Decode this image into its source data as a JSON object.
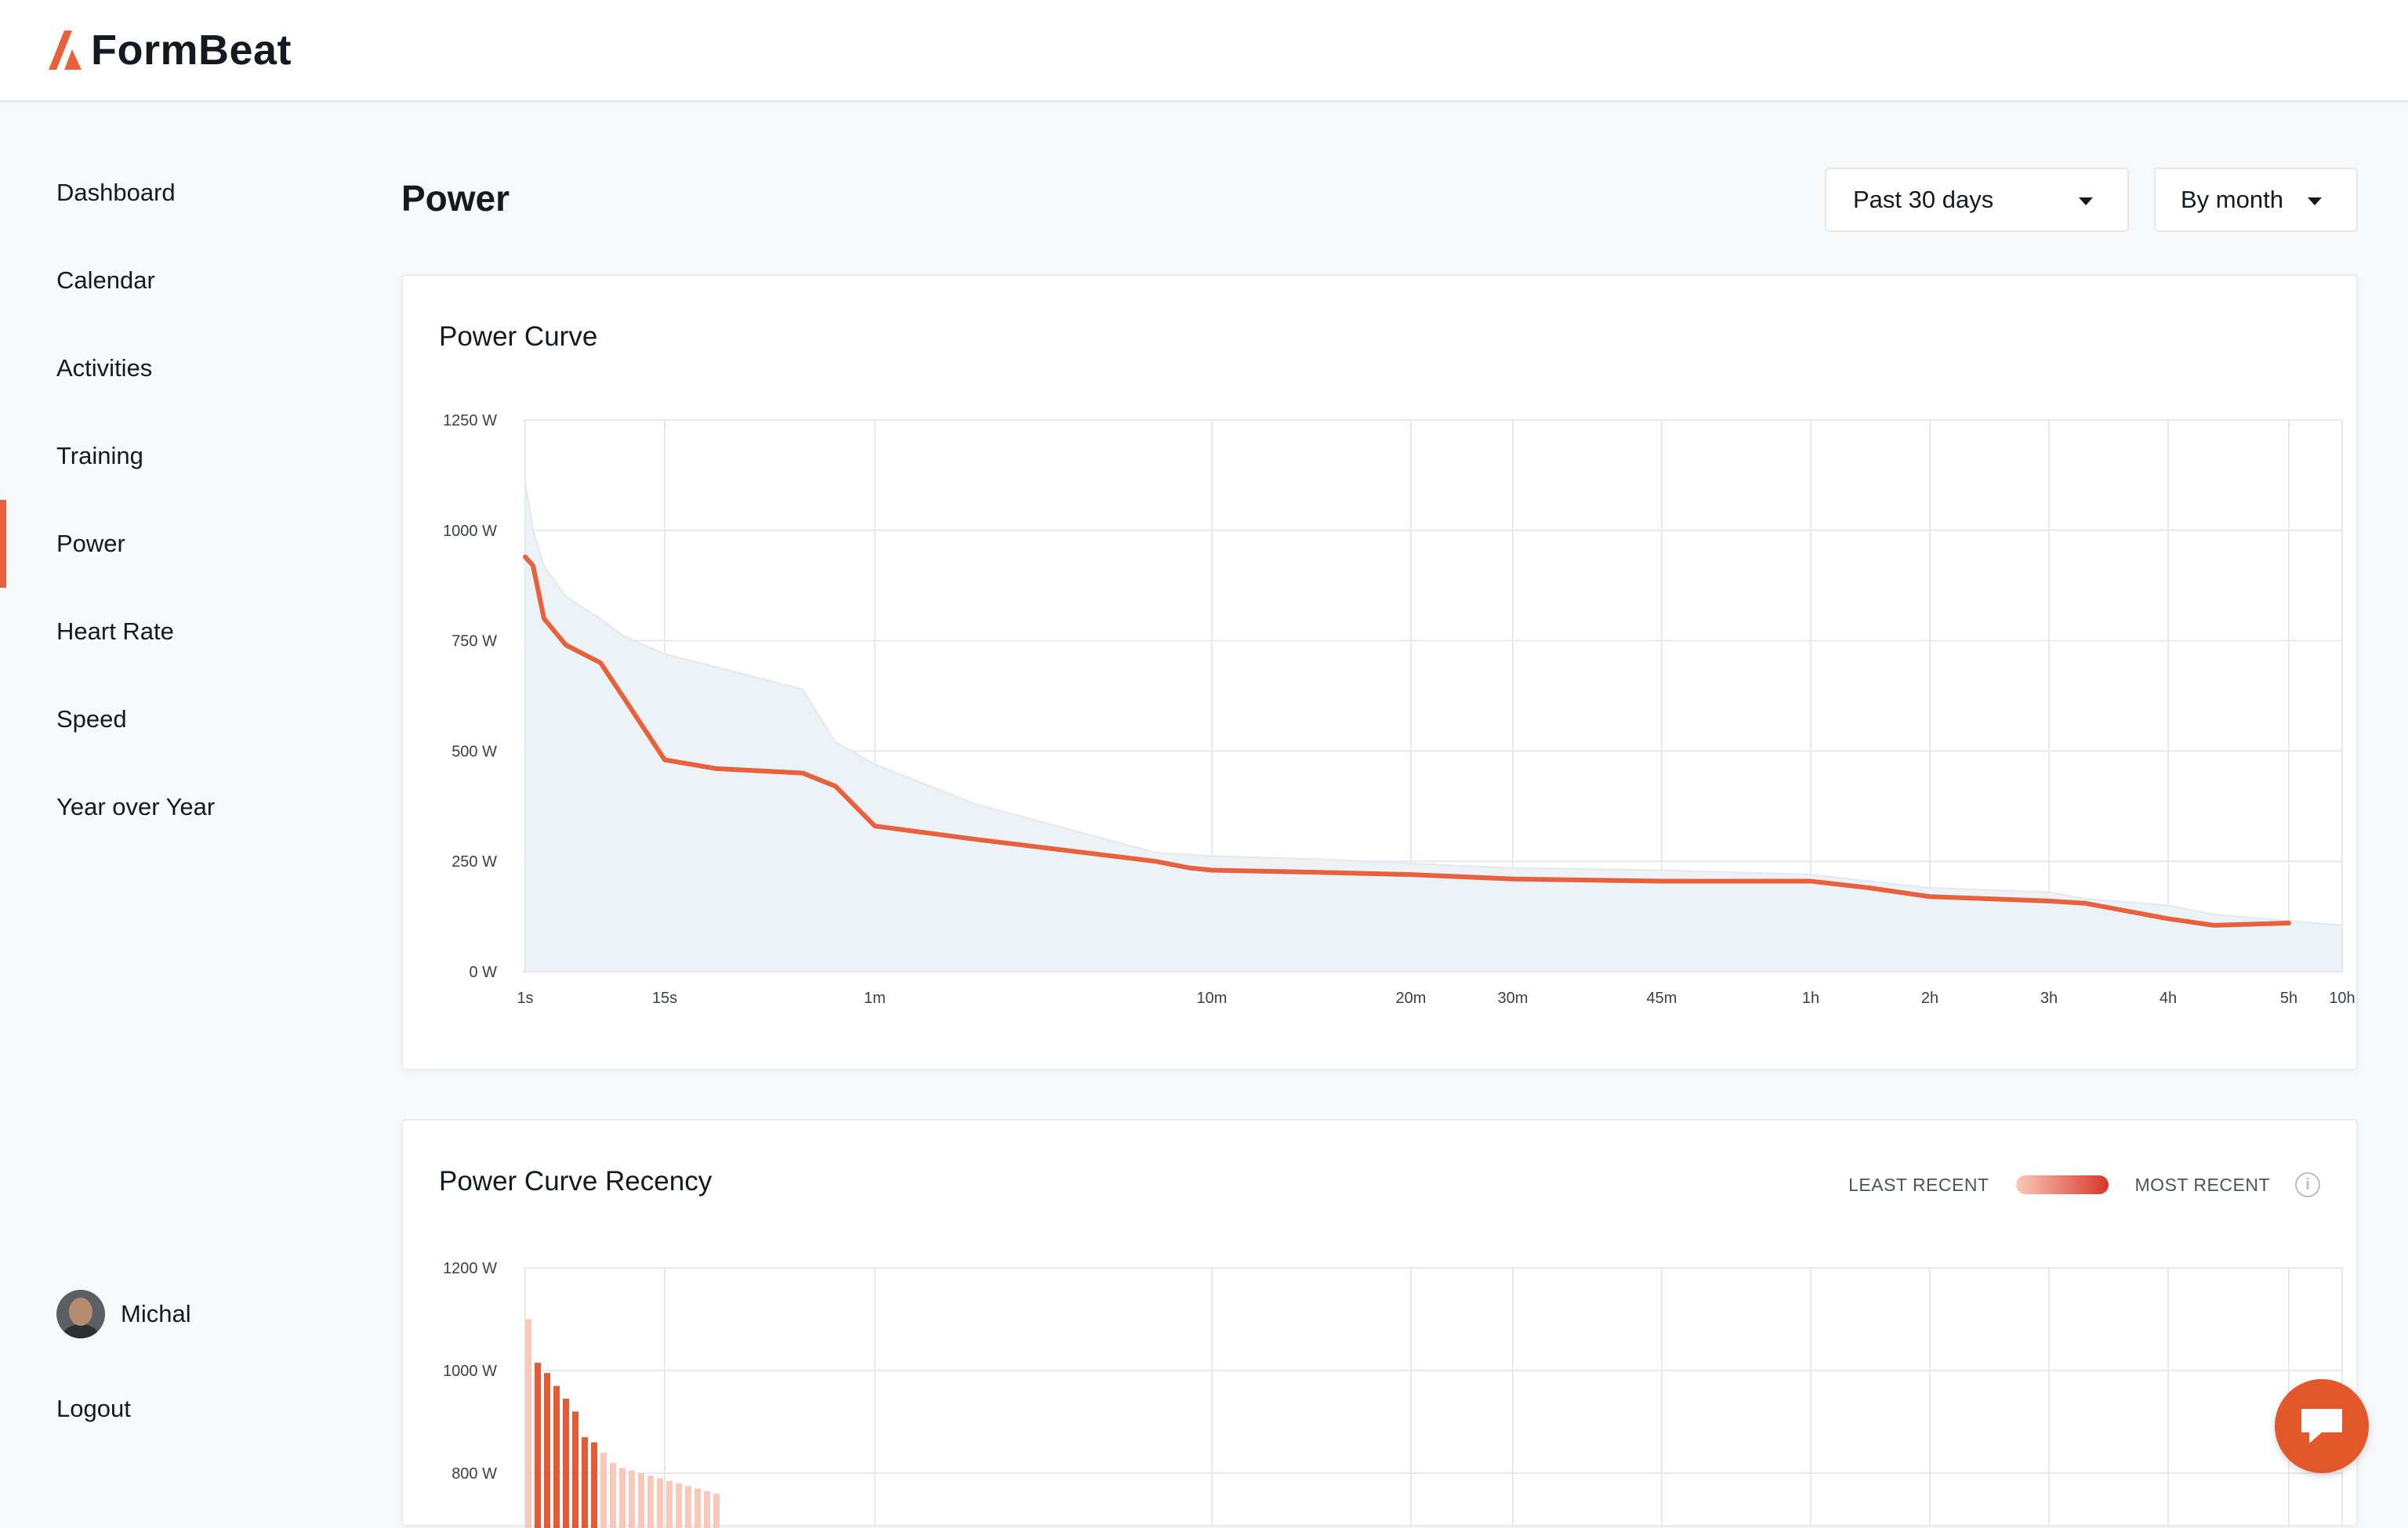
{
  "app": {
    "name": "FormBeat"
  },
  "sidebar": {
    "items": [
      {
        "label": "Dashboard"
      },
      {
        "label": "Calendar"
      },
      {
        "label": "Activities"
      },
      {
        "label": "Training"
      },
      {
        "label": "Power",
        "active": true
      },
      {
        "label": "Heart Rate"
      },
      {
        "label": "Speed"
      },
      {
        "label": "Year over Year"
      }
    ],
    "user": {
      "name": "Michal"
    },
    "logout_label": "Logout"
  },
  "header": {
    "title": "Power",
    "range_select": {
      "value": "Past 30 days"
    },
    "group_select": {
      "value": "By month"
    }
  },
  "colors": {
    "accent": "#e9603c",
    "area": "#edf2f7",
    "recent": "#e25a36",
    "least_recent": "#f8c9b8"
  },
  "chat": {
    "icon": "chat-bubble-icon"
  },
  "chart_data": [
    {
      "type": "line",
      "title": "Power Curve",
      "x": [
        "1s",
        "2s",
        "3s",
        "5s",
        "8s",
        "10s",
        "15s",
        "20s",
        "30s",
        "45s",
        "1m",
        "2m",
        "5m",
        "8m",
        "10m",
        "15m",
        "20m",
        "30m",
        "45m",
        "1h",
        "1.5h",
        "2h",
        "3h",
        "3.5h",
        "4h",
        "4.5h",
        "5h",
        "10h"
      ],
      "xticks": [
        "1s",
        "15s",
        "1m",
        "10m",
        "20m",
        "30m",
        "45m",
        "1h",
        "2h",
        "3h",
        "4h",
        "5h",
        "10h"
      ],
      "yticks": [
        "0 W",
        "250 W",
        "500 W",
        "750 W",
        "1000 W",
        "1250 W"
      ],
      "ylim": [
        0,
        1250
      ],
      "series": [
        {
          "values": [
            940,
            920,
            800,
            740,
            700,
            620,
            480,
            460,
            450,
            420,
            330,
            300,
            250,
            235,
            230,
            225,
            220,
            210,
            205,
            205,
            190,
            170,
            160,
            155,
            120,
            105,
            110,
            null
          ]
        },
        {
          "values": [
            1110,
            1000,
            920,
            850,
            800,
            760,
            720,
            690,
            640,
            520,
            470,
            380,
            270,
            265,
            262,
            255,
            245,
            235,
            230,
            220,
            205,
            190,
            180,
            165,
            150,
            130,
            115,
            105
          ]
        }
      ]
    },
    {
      "type": "bar",
      "title": "Power Curve Recency",
      "legend": {
        "least": "LEAST RECENT",
        "most": "MOST RECENT"
      },
      "yticks": [
        "800 W",
        "1000 W",
        "1200 W"
      ],
      "ylim": [
        800,
        1200
      ],
      "bars": [
        {
          "value": 1100,
          "recent": false
        },
        {
          "value": 1015,
          "recent": true
        },
        {
          "value": 995,
          "recent": true
        },
        {
          "value": 970,
          "recent": true
        },
        {
          "value": 945,
          "recent": true
        },
        {
          "value": 920,
          "recent": true
        },
        {
          "value": 870,
          "recent": true
        },
        {
          "value": 860,
          "recent": true
        },
        {
          "value": 840,
          "recent": false
        },
        {
          "value": 820,
          "recent": false
        },
        {
          "value": 810,
          "recent": false
        },
        {
          "value": 805,
          "recent": false
        },
        {
          "value": 800,
          "recent": false
        },
        {
          "value": 795,
          "recent": false
        },
        {
          "value": 790,
          "recent": false
        },
        {
          "value": 785,
          "recent": false
        },
        {
          "value": 780,
          "recent": false
        },
        {
          "value": 775,
          "recent": false
        },
        {
          "value": 770,
          "recent": false
        },
        {
          "value": 765,
          "recent": false
        },
        {
          "value": 760,
          "recent": false
        }
      ]
    }
  ]
}
